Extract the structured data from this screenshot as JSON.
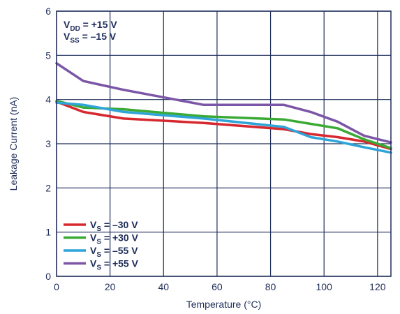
{
  "chart_data": {
    "type": "line",
    "title": "",
    "xlabel": "Temperature (°C)",
    "ylabel": "Leakage Current (nA)",
    "xlim": [
      0,
      125
    ],
    "ylim": [
      0,
      6
    ],
    "xticks": [
      0,
      20,
      40,
      60,
      80,
      100,
      120
    ],
    "yticks": [
      0,
      1,
      2,
      3,
      4,
      5,
      6
    ],
    "grid": true,
    "legend_position": "bottom-left",
    "annotation": [
      {
        "main": "V",
        "sub": "DD",
        "rest": " = +15 V"
      },
      {
        "main": "V",
        "sub": "SS",
        "rest": " = –15 V"
      }
    ],
    "series": [
      {
        "name_main": "V",
        "name_sub": "S",
        "name_rest": " = –30 V",
        "color": "#d7282f",
        "x": [
          0,
          10,
          25,
          55,
          85,
          95,
          105,
          115,
          125
        ],
        "y": [
          3.95,
          3.72,
          3.57,
          3.47,
          3.33,
          3.22,
          3.15,
          3.05,
          2.88
        ]
      },
      {
        "name_main": "V",
        "name_sub": "S",
        "name_rest": " = +30 V",
        "color": "#3aaa35",
        "x": [
          0,
          10,
          25,
          55,
          85,
          95,
          105,
          115,
          125
        ],
        "y": [
          3.97,
          3.82,
          3.78,
          3.62,
          3.55,
          3.45,
          3.35,
          3.1,
          2.9
        ]
      },
      {
        "name_main": "V",
        "name_sub": "S",
        "name_rest": " = –55 V",
        "color": "#2fa4d8",
        "x": [
          0,
          10,
          25,
          55,
          85,
          95,
          105,
          115,
          125
        ],
        "y": [
          3.93,
          3.88,
          3.72,
          3.57,
          3.38,
          3.15,
          3.05,
          2.92,
          2.8
        ]
      },
      {
        "name_main": "V",
        "name_sub": "S",
        "name_rest": " = +55 V",
        "color": "#7b55a6",
        "x": [
          0,
          10,
          25,
          55,
          85,
          95,
          105,
          115,
          125
        ],
        "y": [
          4.82,
          4.42,
          4.22,
          3.88,
          3.88,
          3.72,
          3.5,
          3.18,
          3.03
        ]
      }
    ]
  }
}
